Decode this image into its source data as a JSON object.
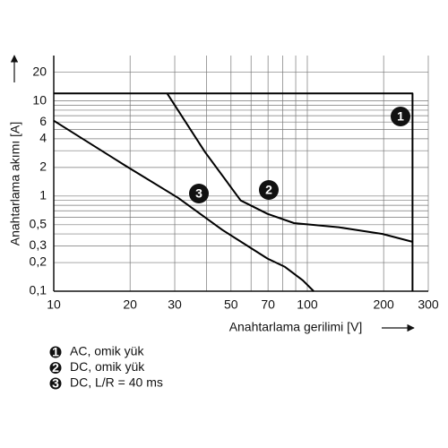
{
  "chart_data": {
    "type": "line",
    "x_label": "Anahtarlama gerilimi [V]",
    "y_label": "Anahtarlama akımı [A]",
    "log_x": true,
    "log_y": true,
    "grid": true,
    "xlim": [
      10,
      300
    ],
    "ylim": [
      0.1,
      30
    ],
    "xticks": [
      10,
      20,
      30,
      50,
      70,
      100,
      200,
      300
    ],
    "x_minor_ticks": [
      40,
      60,
      80,
      90
    ],
    "yticks": [
      {
        "value": 0.1,
        "label": "0,1"
      },
      {
        "value": 0.2,
        "label": "0,2"
      },
      {
        "value": 0.3,
        "label": "0,3"
      },
      {
        "value": 0.5,
        "label": "0,5"
      },
      1,
      2,
      4,
      6,
      10,
      20
    ],
    "y_minor_ticks": [
      0.4,
      0.6,
      0.7,
      0.8,
      0.9,
      3,
      5,
      7,
      8,
      9
    ],
    "series": [
      {
        "name": "AC, omik yük",
        "marker": "1",
        "color": "#000000",
        "x": [
          10,
          260,
          260
        ],
        "values": [
          12,
          12,
          0.1
        ]
      },
      {
        "name": "DC, omik yük",
        "marker": "2",
        "color": "#000000",
        "x": [
          28,
          39.5,
          54.6,
          69.7,
          88.6,
          133,
          198,
          260
        ],
        "values": [
          12,
          2.9,
          0.9,
          0.65,
          0.52,
          0.47,
          0.4,
          0.33
        ]
      },
      {
        "name": "DC, L/R = 40 ms",
        "marker": "3",
        "color": "#000000",
        "x": [
          10,
          19.1,
          30.9,
          46.3,
          69.7,
          81.7,
          96,
          106
        ],
        "values": [
          6.2,
          2.1,
          0.96,
          0.44,
          0.22,
          0.18,
          0.13,
          0.1
        ]
      }
    ]
  }
}
